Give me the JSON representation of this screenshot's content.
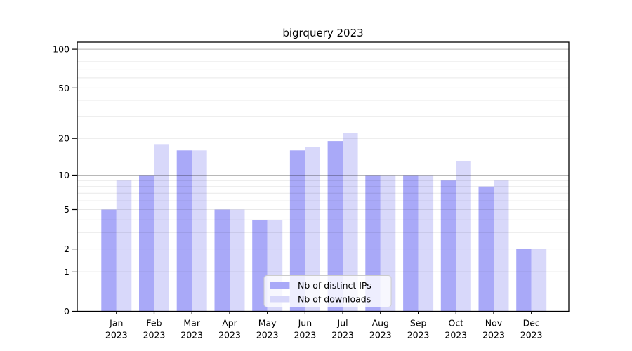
{
  "title": "bigrquery 2023",
  "chart_data": {
    "type": "bar",
    "title": "bigrquery 2023",
    "categories": [
      "Jan",
      "Feb",
      "Mar",
      "Apr",
      "May",
      "Jun",
      "Jul",
      "Aug",
      "Sep",
      "Oct",
      "Nov",
      "Dec"
    ],
    "category_year": "2023",
    "series": [
      {
        "name": "Nb of distinct IPs",
        "color": "#a9a9f8",
        "values": [
          5,
          10,
          16,
          5,
          4,
          16,
          19,
          10,
          10,
          9,
          8,
          2
        ]
      },
      {
        "name": "Nb of downloads",
        "color": "#d8d8fa",
        "values": [
          9,
          18,
          16,
          5,
          4,
          17,
          22,
          10,
          10,
          13,
          9,
          2
        ]
      }
    ],
    "yscale": "log1p",
    "y_ticks": [
      0,
      1,
      2,
      5,
      10,
      20,
      50,
      100
    ],
    "y_major_gridlines": [
      1,
      10,
      100
    ],
    "y_minor_gridlines": [
      2,
      3,
      4,
      5,
      6,
      7,
      8,
      9,
      20,
      30,
      40,
      50,
      60,
      70,
      80,
      90
    ],
    "ylim": [
      0,
      110
    ],
    "xlabel": "",
    "ylabel": "",
    "grid": "horizontal",
    "legend_position": "lower center"
  },
  "colors": {
    "background": "#ffffff",
    "bar_distinct_ips": "#a9a9f8",
    "bar_downloads": "#d8d8fa",
    "grid_major": "rgba(0,0,0,0.28)",
    "grid_minor": "rgba(0,0,0,0.09)",
    "spine": "#000000",
    "legend_border": "#cccccc",
    "legend_fill": "rgba(255,255,255,0.8)"
  }
}
